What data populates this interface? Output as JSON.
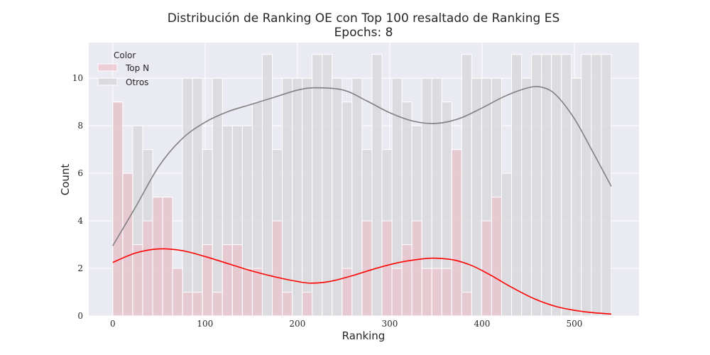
{
  "chart_data": {
    "type": "histogram",
    "title": "Distribución de Ranking OE con Top 100 resaltado de Ranking ES",
    "subtitle": "Epochs: 8",
    "xlabel": "Ranking",
    "ylabel": "Count",
    "xlim": [
      -26,
      570
    ],
    "ylim": [
      0,
      11.5
    ],
    "x_ticks": [
      0,
      100,
      200,
      300,
      400,
      500
    ],
    "y_ticks": [
      0,
      2,
      4,
      6,
      8,
      10
    ],
    "grid": true,
    "bin_width": 10.8,
    "bin_starts": [
      0,
      10.8,
      21.6,
      32.4,
      43.2,
      54,
      64.8,
      75.6,
      86.4,
      97.2,
      108,
      118.8,
      129.6,
      140.4,
      151.2,
      162,
      172.8,
      183.6,
      194.4,
      205.2,
      216,
      226.8,
      237.6,
      248.4,
      259.2,
      270,
      280.8,
      291.6,
      302.4,
      313.2,
      324,
      334.8,
      345.6,
      356.4,
      367.2,
      378,
      388.8,
      399.6,
      410.4,
      421.2,
      432,
      442.8,
      453.6,
      464.4,
      475.2,
      486,
      496.8,
      507.6,
      518.4,
      529.2
    ],
    "legend": {
      "title": "Color",
      "position": "upper left",
      "entries": [
        "Top N",
        "Otros"
      ]
    },
    "series": [
      {
        "name": "Otros",
        "color": "#d9d9dd",
        "edge": "#ffffff",
        "counts": [
          9,
          6,
          8,
          7,
          5,
          5,
          2,
          10,
          10,
          7,
          10,
          8,
          8,
          8,
          9,
          11,
          7,
          10,
          10,
          10,
          11,
          11,
          10,
          9,
          10,
          7,
          11,
          7,
          10,
          9,
          8,
          10,
          10,
          9,
          7,
          11,
          10,
          10,
          10,
          6,
          11,
          10,
          11,
          11,
          11,
          11,
          10,
          11,
          11,
          11
        ],
        "kde": {
          "color": "#808080",
          "x": [
            0,
            25,
            50,
            75,
            100,
            125,
            150,
            175,
            200,
            220,
            250,
            275,
            300,
            325,
            350,
            375,
            400,
            425,
            450,
            465,
            480,
            500,
            520,
            540
          ],
          "y": [
            2.95,
            4.6,
            6.3,
            7.45,
            8.15,
            8.6,
            8.9,
            9.2,
            9.5,
            9.6,
            9.5,
            9.05,
            8.55,
            8.2,
            8.1,
            8.3,
            8.75,
            9.25,
            9.6,
            9.62,
            9.3,
            8.3,
            6.9,
            5.45
          ]
        }
      },
      {
        "name": "Top N",
        "color": "#eebac4",
        "edge": "#ffffff",
        "counts": [
          9,
          6,
          3,
          4,
          5,
          5,
          2,
          1,
          1,
          3,
          1,
          3,
          3,
          2,
          2,
          0,
          4,
          1,
          0,
          1,
          0,
          0,
          0,
          2,
          0,
          4,
          0,
          4,
          2,
          3,
          4,
          2,
          2,
          2,
          7,
          1,
          0,
          4,
          5,
          0,
          0,
          0,
          0,
          0,
          0,
          0,
          0,
          0,
          0,
          0
        ],
        "kde": {
          "color": "#ff0000",
          "x": [
            0,
            25,
            50,
            75,
            100,
            125,
            150,
            175,
            200,
            215,
            235,
            260,
            285,
            310,
            335,
            350,
            370,
            390,
            410,
            430,
            455,
            480,
            510,
            540
          ],
          "y": [
            2.25,
            2.65,
            2.82,
            2.75,
            2.5,
            2.2,
            1.9,
            1.65,
            1.45,
            1.38,
            1.45,
            1.7,
            2.0,
            2.25,
            2.4,
            2.43,
            2.35,
            2.1,
            1.7,
            1.25,
            0.75,
            0.4,
            0.18,
            0.08
          ]
        }
      }
    ]
  }
}
